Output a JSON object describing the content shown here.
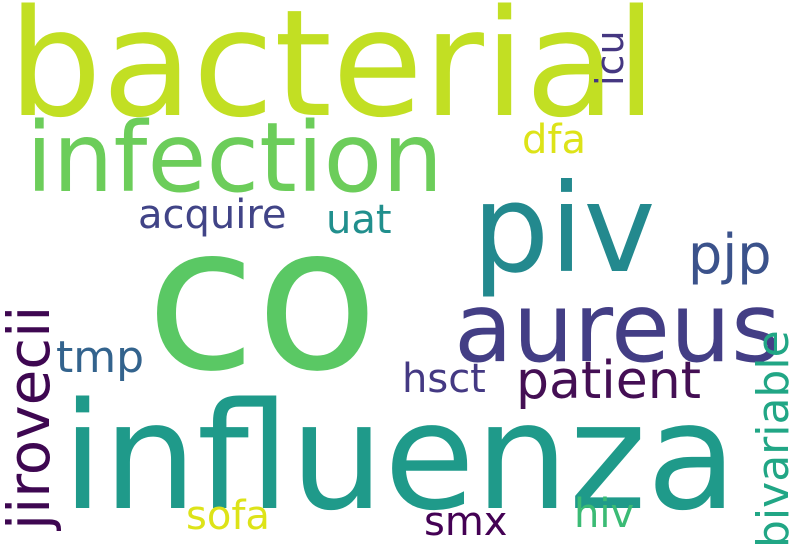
{
  "words": [
    {
      "id": "bacterial",
      "text": "bacterial",
      "color": "#c2df23",
      "orientation": "horizontal"
    },
    {
      "id": "co",
      "text": "co",
      "color": "#5ac864",
      "orientation": "horizontal"
    },
    {
      "id": "influenza",
      "text": "influenza",
      "color": "#1f9a8a",
      "orientation": "horizontal"
    },
    {
      "id": "infection",
      "text": "infection",
      "color": "#6ccd5a",
      "orientation": "horizontal"
    },
    {
      "id": "piv",
      "text": "piv",
      "color": "#23898e",
      "orientation": "horizontal"
    },
    {
      "id": "aureus",
      "text": "aureus",
      "color": "#433e85",
      "orientation": "horizontal"
    },
    {
      "id": "patient",
      "text": "patient",
      "color": "#440f54",
      "orientation": "horizontal"
    },
    {
      "id": "jirovecii",
      "text": "jirovecii",
      "color": "#3e0751",
      "orientation": "vertical"
    },
    {
      "id": "pjp",
      "text": "pjp",
      "color": "#3b528b",
      "orientation": "horizontal"
    },
    {
      "id": "bivariable",
      "text": "bivariable",
      "color": "#21a685",
      "orientation": "vertical"
    },
    {
      "id": "acquire",
      "text": "acquire",
      "color": "#414487",
      "orientation": "horizontal"
    },
    {
      "id": "uat",
      "text": "uat",
      "color": "#218f8d",
      "orientation": "horizontal"
    },
    {
      "id": "tmp",
      "text": "tmp",
      "color": "#33638d",
      "orientation": "horizontal"
    },
    {
      "id": "hsct",
      "text": "hsct",
      "color": "#443983",
      "orientation": "horizontal"
    },
    {
      "id": "icu",
      "text": "icu",
      "color": "#453781",
      "orientation": "vertical"
    },
    {
      "id": "dfa",
      "text": "dfa",
      "color": "#dde318",
      "orientation": "horizontal"
    },
    {
      "id": "sofa",
      "text": "sofa",
      "color": "#dde318",
      "orientation": "horizontal"
    },
    {
      "id": "smx",
      "text": "smx",
      "color": "#440154",
      "orientation": "horizontal"
    },
    {
      "id": "hiv",
      "text": "hiv",
      "color": "#3bbb75",
      "orientation": "horizontal"
    }
  ]
}
